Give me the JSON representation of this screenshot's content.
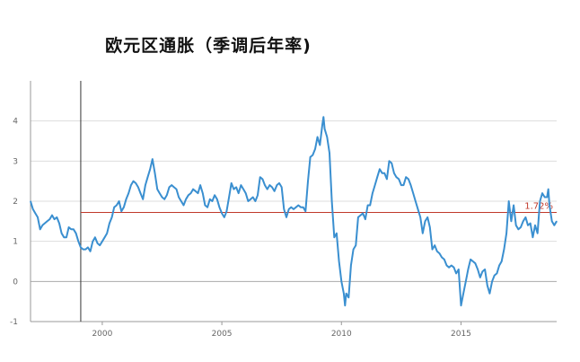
{
  "chart_data": {
    "type": "line",
    "title": "欧元区通胀（季调后年率)",
    "xlabel": "",
    "ylabel": "",
    "xlim": [
      1997.0,
      2019.0
    ],
    "ylim": [
      -1,
      5
    ],
    "x_ticks": [
      2000,
      2005,
      2010,
      2015
    ],
    "x_tick_labels": [
      "2000",
      "2005",
      "2010",
      "2015"
    ],
    "y_ticks": [
      -1,
      0,
      1,
      2,
      3,
      4
    ],
    "y_tick_labels": [
      "-1",
      "0",
      "1",
      "2",
      "3",
      "4"
    ],
    "grid": true,
    "colors": {
      "line": "#3a8fd0",
      "reference_line": "#c0392b",
      "grid": "#dddddd",
      "axis": "#999999"
    },
    "reference_line": {
      "value": 1.72,
      "label": "1.72%"
    },
    "marker_vline": {
      "x": 1999.1
    },
    "series": [
      {
        "values": [
          [
            1997.0,
            2.0
          ],
          [
            1997.1,
            1.8
          ],
          [
            1997.2,
            1.7
          ],
          [
            1997.3,
            1.6
          ],
          [
            1997.4,
            1.3
          ],
          [
            1997.5,
            1.4
          ],
          [
            1997.7,
            1.5
          ],
          [
            1997.8,
            1.55
          ],
          [
            1997.9,
            1.65
          ],
          [
            1998.0,
            1.55
          ],
          [
            1998.1,
            1.6
          ],
          [
            1998.2,
            1.45
          ],
          [
            1998.3,
            1.2
          ],
          [
            1998.4,
            1.1
          ],
          [
            1998.5,
            1.1
          ],
          [
            1998.6,
            1.35
          ],
          [
            1998.7,
            1.3
          ],
          [
            1998.8,
            1.3
          ],
          [
            1998.9,
            1.2
          ],
          [
            1999.0,
            1.0
          ],
          [
            1999.1,
            0.85
          ],
          [
            1999.2,
            0.8
          ],
          [
            1999.3,
            0.8
          ],
          [
            1999.4,
            0.85
          ],
          [
            1999.5,
            0.75
          ],
          [
            1999.6,
            1.0
          ],
          [
            1999.7,
            1.1
          ],
          [
            1999.8,
            0.95
          ],
          [
            1999.9,
            0.9
          ],
          [
            2000.0,
            1.0
          ],
          [
            2000.1,
            1.1
          ],
          [
            2000.2,
            1.2
          ],
          [
            2000.3,
            1.45
          ],
          [
            2000.4,
            1.6
          ],
          [
            2000.5,
            1.85
          ],
          [
            2000.6,
            1.9
          ],
          [
            2000.7,
            2.0
          ],
          [
            2000.8,
            1.75
          ],
          [
            2000.9,
            1.85
          ],
          [
            2001.0,
            2.05
          ],
          [
            2001.1,
            2.2
          ],
          [
            2001.2,
            2.4
          ],
          [
            2001.3,
            2.5
          ],
          [
            2001.4,
            2.45
          ],
          [
            2001.5,
            2.35
          ],
          [
            2001.6,
            2.2
          ],
          [
            2001.7,
            2.05
          ],
          [
            2001.8,
            2.4
          ],
          [
            2001.9,
            2.6
          ],
          [
            2002.0,
            2.8
          ],
          [
            2002.1,
            3.05
          ],
          [
            2002.2,
            2.7
          ],
          [
            2002.3,
            2.3
          ],
          [
            2002.4,
            2.2
          ],
          [
            2002.5,
            2.1
          ],
          [
            2002.6,
            2.05
          ],
          [
            2002.7,
            2.15
          ],
          [
            2002.8,
            2.35
          ],
          [
            2002.9,
            2.4
          ],
          [
            2003.0,
            2.35
          ],
          [
            2003.1,
            2.3
          ],
          [
            2003.2,
            2.1
          ],
          [
            2003.3,
            2.0
          ],
          [
            2003.4,
            1.9
          ],
          [
            2003.5,
            2.05
          ],
          [
            2003.6,
            2.15
          ],
          [
            2003.7,
            2.2
          ],
          [
            2003.8,
            2.3
          ],
          [
            2003.9,
            2.25
          ],
          [
            2004.0,
            2.2
          ],
          [
            2004.1,
            2.4
          ],
          [
            2004.2,
            2.2
          ],
          [
            2004.3,
            1.9
          ],
          [
            2004.4,
            1.85
          ],
          [
            2004.5,
            2.05
          ],
          [
            2004.6,
            2.0
          ],
          [
            2004.7,
            2.15
          ],
          [
            2004.8,
            2.05
          ],
          [
            2004.9,
            1.85
          ],
          [
            2005.0,
            1.7
          ],
          [
            2005.1,
            1.6
          ],
          [
            2005.2,
            1.75
          ],
          [
            2005.3,
            2.1
          ],
          [
            2005.4,
            2.45
          ],
          [
            2005.5,
            2.3
          ],
          [
            2005.6,
            2.35
          ],
          [
            2005.7,
            2.2
          ],
          [
            2005.8,
            2.4
          ],
          [
            2005.9,
            2.3
          ],
          [
            2006.0,
            2.2
          ],
          [
            2006.1,
            2.0
          ],
          [
            2006.2,
            2.05
          ],
          [
            2006.3,
            2.1
          ],
          [
            2006.4,
            2.0
          ],
          [
            2006.5,
            2.15
          ],
          [
            2006.6,
            2.6
          ],
          [
            2006.7,
            2.55
          ],
          [
            2006.8,
            2.4
          ],
          [
            2006.9,
            2.3
          ],
          [
            2007.0,
            2.4
          ],
          [
            2007.1,
            2.35
          ],
          [
            2007.2,
            2.25
          ],
          [
            2007.3,
            2.4
          ],
          [
            2007.4,
            2.45
          ],
          [
            2007.5,
            2.35
          ],
          [
            2007.6,
            1.8
          ],
          [
            2007.7,
            1.6
          ],
          [
            2007.8,
            1.8
          ],
          [
            2007.9,
            1.85
          ],
          [
            2008.0,
            1.8
          ],
          [
            2008.1,
            1.85
          ],
          [
            2008.2,
            1.9
          ],
          [
            2008.3,
            1.85
          ],
          [
            2008.4,
            1.85
          ],
          [
            2008.5,
            1.75
          ],
          [
            2008.6,
            2.5
          ],
          [
            2008.7,
            3.1
          ],
          [
            2008.8,
            3.15
          ],
          [
            2008.9,
            3.3
          ],
          [
            2009.0,
            3.6
          ],
          [
            2009.1,
            3.4
          ],
          [
            2009.2,
            3.9
          ],
          [
            2009.25,
            4.1
          ],
          [
            2009.3,
            3.8
          ],
          [
            2009.4,
            3.6
          ],
          [
            2009.5,
            3.2
          ],
          [
            2009.6,
            2.0
          ],
          [
            2009.7,
            1.1
          ],
          [
            2009.8,
            1.2
          ],
          [
            2009.9,
            0.5
          ],
          [
            2010.0,
            0.0
          ],
          [
            2010.1,
            -0.3
          ],
          [
            2010.15,
            -0.6
          ],
          [
            2010.2,
            -0.3
          ],
          [
            2010.3,
            -0.4
          ],
          [
            2010.4,
            0.4
          ],
          [
            2010.5,
            0.8
          ],
          [
            2010.6,
            0.9
          ],
          [
            2010.7,
            1.6
          ],
          [
            2010.8,
            1.65
          ],
          [
            2010.9,
            1.7
          ],
          [
            2011.0,
            1.55
          ],
          [
            2011.1,
            1.9
          ],
          [
            2011.2,
            1.9
          ],
          [
            2011.3,
            2.2
          ],
          [
            2011.4,
            2.4
          ],
          [
            2011.5,
            2.6
          ],
          [
            2011.6,
            2.8
          ],
          [
            2011.7,
            2.7
          ],
          [
            2011.8,
            2.7
          ],
          [
            2011.9,
            2.55
          ],
          [
            2012.0,
            3.0
          ],
          [
            2012.1,
            2.95
          ],
          [
            2012.2,
            2.7
          ],
          [
            2012.3,
            2.6
          ],
          [
            2012.4,
            2.55
          ],
          [
            2012.5,
            2.4
          ],
          [
            2012.6,
            2.4
          ],
          [
            2012.7,
            2.6
          ],
          [
            2012.8,
            2.55
          ],
          [
            2012.9,
            2.4
          ],
          [
            2013.0,
            2.2
          ],
          [
            2013.1,
            2.0
          ],
          [
            2013.2,
            1.8
          ],
          [
            2013.3,
            1.6
          ],
          [
            2013.4,
            1.2
          ],
          [
            2013.5,
            1.5
          ],
          [
            2013.6,
            1.6
          ],
          [
            2013.7,
            1.35
          ],
          [
            2013.8,
            0.8
          ],
          [
            2013.9,
            0.9
          ],
          [
            2014.0,
            0.75
          ],
          [
            2014.1,
            0.7
          ],
          [
            2014.2,
            0.6
          ],
          [
            2014.3,
            0.55
          ],
          [
            2014.4,
            0.4
          ],
          [
            2014.5,
            0.35
          ],
          [
            2014.6,
            0.4
          ],
          [
            2014.7,
            0.35
          ],
          [
            2014.8,
            0.2
          ],
          [
            2014.9,
            0.3
          ],
          [
            2015.0,
            -0.6
          ],
          [
            2015.1,
            -0.3
          ],
          [
            2015.2,
            0.0
          ],
          [
            2015.3,
            0.3
          ],
          [
            2015.4,
            0.55
          ],
          [
            2015.5,
            0.5
          ],
          [
            2015.6,
            0.45
          ],
          [
            2015.7,
            0.3
          ],
          [
            2015.8,
            0.1
          ],
          [
            2015.9,
            0.25
          ],
          [
            2016.0,
            0.3
          ],
          [
            2016.1,
            -0.1
          ],
          [
            2016.2,
            -0.3
          ],
          [
            2016.3,
            0.0
          ],
          [
            2016.4,
            0.15
          ],
          [
            2016.5,
            0.2
          ],
          [
            2016.6,
            0.4
          ],
          [
            2016.7,
            0.5
          ],
          [
            2016.8,
            0.8
          ],
          [
            2016.9,
            1.2
          ],
          [
            2017.0,
            2.0
          ],
          [
            2017.1,
            1.5
          ],
          [
            2017.2,
            1.9
          ],
          [
            2017.3,
            1.4
          ],
          [
            2017.4,
            1.3
          ],
          [
            2017.5,
            1.35
          ],
          [
            2017.6,
            1.5
          ],
          [
            2017.7,
            1.6
          ],
          [
            2017.8,
            1.4
          ],
          [
            2017.9,
            1.45
          ],
          [
            2018.0,
            1.1
          ],
          [
            2018.1,
            1.4
          ],
          [
            2018.2,
            1.2
          ],
          [
            2018.3,
            2.0
          ],
          [
            2018.4,
            2.2
          ],
          [
            2018.5,
            2.1
          ],
          [
            2018.6,
            2.1
          ],
          [
            2018.65,
            2.3
          ],
          [
            2018.7,
            1.9
          ],
          [
            2018.8,
            1.5
          ],
          [
            2018.9,
            1.4
          ],
          [
            2019.0,
            1.5
          ]
        ]
      }
    ]
  }
}
